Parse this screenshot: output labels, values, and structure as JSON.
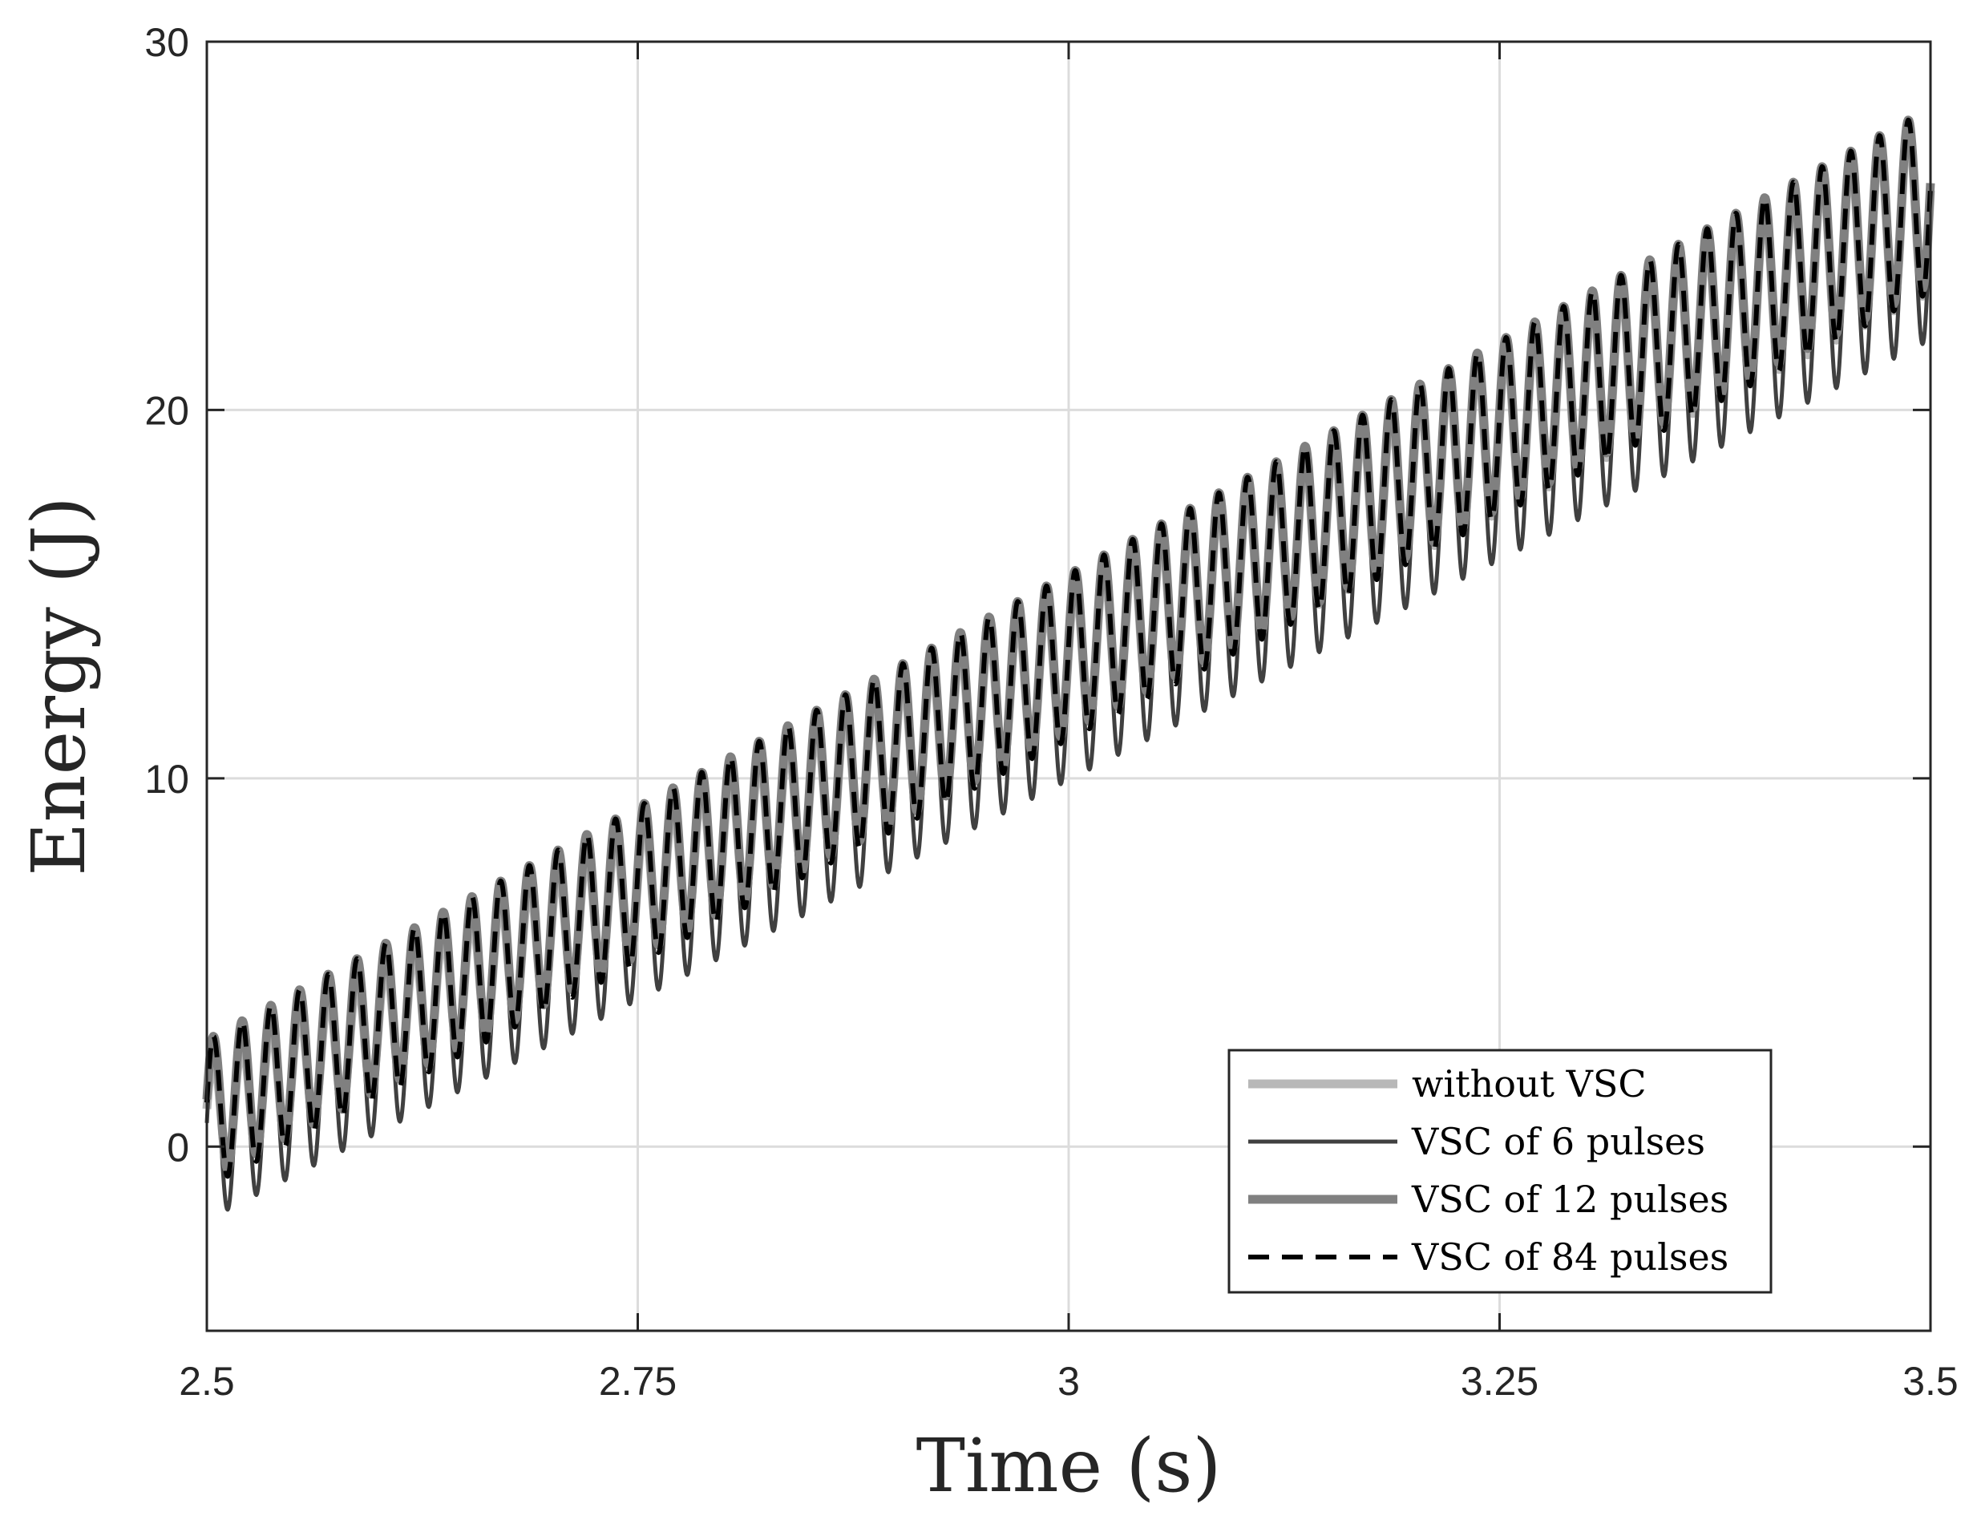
{
  "chart_data": {
    "type": "line",
    "title": "",
    "xlabel": "Time (s)",
    "ylabel": "Energy (J)",
    "xlim": [
      2.5,
      3.5
    ],
    "ylim": [
      -5,
      30
    ],
    "xticks": [
      2.5,
      2.75,
      3,
      3.25,
      3.5
    ],
    "xtick_labels": [
      "2.5",
      "2.75",
      "3",
      "3.25",
      "3.5"
    ],
    "yticks": [
      0,
      10,
      20,
      30
    ],
    "ytick_labels": [
      "0",
      "10",
      "20",
      "30"
    ],
    "grid": true,
    "legend_position": "bottom-right",
    "oscillation_frequency_hz": 60,
    "series": [
      {
        "name": "without VSC",
        "color": "#b8b8b8",
        "style": "solid",
        "trend_start": 0.8,
        "trend_end": 25.6,
        "amplitude_start": 1.5,
        "amplitude_end": 2.4
      },
      {
        "name": "VSC of 6 pulses",
        "color": "#404040",
        "style": "solid",
        "trend_start": 0.3,
        "trend_end": 25.0,
        "amplitude_start": 2.3,
        "amplitude_end": 3.1
      },
      {
        "name": "VSC of 12 pulses",
        "color": "#808080",
        "style": "solid",
        "trend_start": 1.0,
        "trend_end": 25.8,
        "amplitude_start": 1.9,
        "amplitude_end": 2.4
      },
      {
        "name": "VSC of 84 pulses",
        "color": "#000000",
        "style": "dashed",
        "trend_start": 0.9,
        "trend_end": 25.7,
        "amplitude_start": 2.0,
        "amplitude_end": 2.5
      }
    ]
  }
}
